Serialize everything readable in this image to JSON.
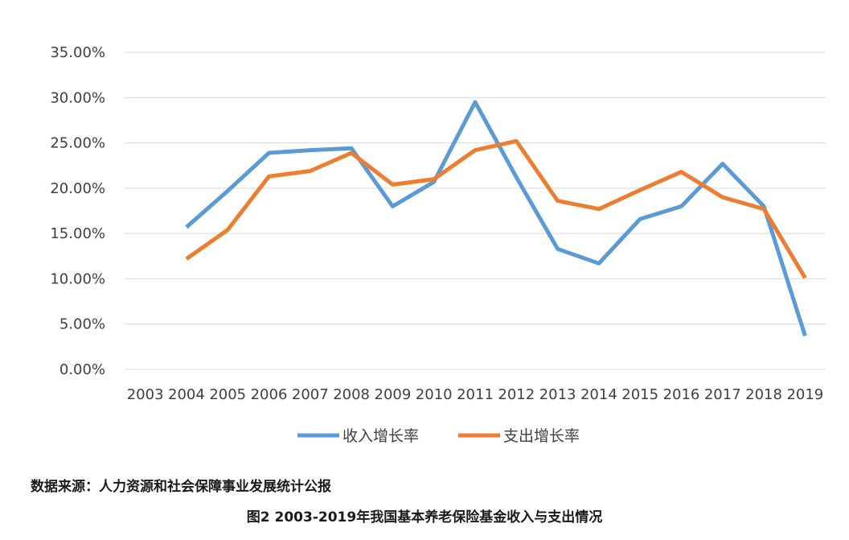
{
  "colors": {
    "income": "#5B9BD5",
    "expense": "#ED7D31",
    "grid": "#D9D9D9",
    "text": "#404040"
  },
  "chart_data": {
    "type": "line",
    "title": "",
    "xlabel": "",
    "ylabel": "",
    "categories": [
      "2003",
      "2004",
      "2005",
      "2006",
      "2007",
      "2008",
      "2009",
      "2010",
      "2011",
      "2012",
      "2013",
      "2014",
      "2015",
      "2016",
      "2017",
      "2018",
      "2019"
    ],
    "ylim": [
      0,
      0.35
    ],
    "yticks": [
      0,
      0.05,
      0.1,
      0.15,
      0.2,
      0.25,
      0.3,
      0.35
    ],
    "ytick_labels": [
      "0.00%",
      "5.00%",
      "10.00%",
      "15.00%",
      "20.00%",
      "25.00%",
      "30.00%",
      "35.00%"
    ],
    "grid": true,
    "legend_position": "bottom",
    "series": [
      {
        "name": "收入增长率",
        "color": "#5B9BD5",
        "values": [
          null,
          0.157,
          0.197,
          0.239,
          0.242,
          0.244,
          0.18,
          0.207,
          0.295,
          0.212,
          0.133,
          0.117,
          0.166,
          0.18,
          0.227,
          0.18,
          0.037
        ]
      },
      {
        "name": "支出增长率",
        "color": "#ED7D31",
        "values": [
          null,
          0.122,
          0.154,
          0.213,
          0.219,
          0.239,
          0.204,
          0.21,
          0.242,
          0.252,
          0.186,
          0.177,
          0.198,
          0.218,
          0.19,
          0.177,
          0.101
        ]
      }
    ]
  },
  "footer": {
    "source": "数据来源：人力资源和社会保障事业发展统计公报",
    "caption": "图2  2003-2019年我国基本养老保险基金收入与支出情况"
  }
}
